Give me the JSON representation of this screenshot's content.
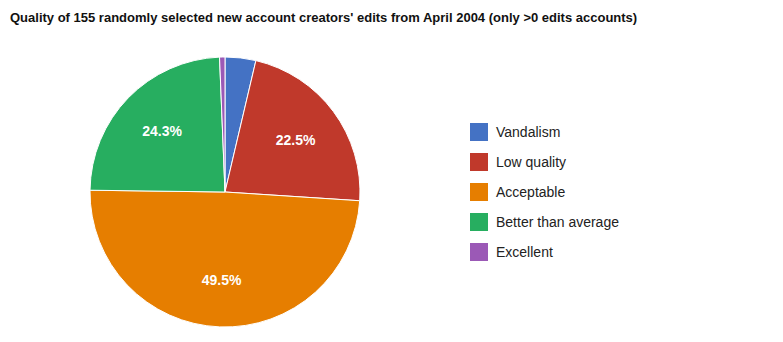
{
  "chart_data": {
    "type": "pie",
    "title": "Quality of 155 randomly selected new account creators' edits from April 2004 (only >0 edits accounts)",
    "categories": [
      "Vandalism",
      "Low quality",
      "Acceptable",
      "Better than average",
      "Excellent"
    ],
    "values": [
      3.7,
      22.5,
      49.5,
      24.3,
      0.65
    ],
    "colors": [
      "#4472C4",
      "#C0392B",
      "#E67E00",
      "#27AE60",
      "#9B59B6"
    ],
    "data_labels": true,
    "value_labels": [
      null,
      "22.5%",
      "49.5%",
      "24.3%",
      null
    ],
    "legend": "right"
  }
}
